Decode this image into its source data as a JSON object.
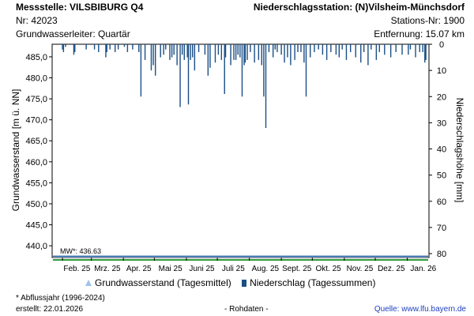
{
  "header": {
    "station_label": "Messstelle: VILSBIBURG Q4",
    "number_label": "Nr: 42023",
    "aquifer_label": "Grundwasserleiter: Quartär",
    "precip_station_label": "Niederschlagsstation: (N)Vilsheim-Münchsdorf",
    "precip_number_label": "Stations-Nr: 1900",
    "distance_label": "Entfernung: 15.07 km"
  },
  "legend": {
    "groundwater": "Grundwasserstand (Tagesmittel)",
    "precipitation": "Niederschlag (Tagessummen)"
  },
  "footer": {
    "note": "* Abflussjahr (1996-2024)",
    "created": "erstellt:  22.01.2026",
    "raw": "- Rohdaten -",
    "source_prefix": "Quelle: ",
    "source_link": "www.lfu.bayern.de"
  },
  "colors": {
    "precipitation_bar": "#1a4f86",
    "mw_line": "#2e9a3a",
    "groundwater_fill": "#9fc3ea",
    "axis": "#000000"
  },
  "chart_data": {
    "type": "bar",
    "left_axis": {
      "label": "Grundwasserstand [m ü. NN]",
      "ticks": [
        "440,0",
        "445,0",
        "450,0",
        "455,0",
        "460,0",
        "465,0",
        "470,0",
        "475,0",
        "480,0",
        "485,0"
      ],
      "tick_values": [
        440,
        445,
        450,
        455,
        460,
        465,
        470,
        475,
        480,
        485
      ],
      "range": [
        437.2,
        488.0
      ]
    },
    "right_axis": {
      "label": "Niederschlagshöhe [mm]",
      "ticks": [
        "0",
        "10",
        "20",
        "30",
        "40",
        "50",
        "60",
        "70",
        "80"
      ],
      "tick_values": [
        0,
        10,
        20,
        30,
        40,
        50,
        60,
        70,
        80
      ],
      "range": [
        0,
        81.5
      ],
      "inverted": true
    },
    "x_axis": {
      "ticks": [
        "Feb. 25",
        "Mrz. 25",
        "Apr. 25",
        "Mai 25",
        "Juni 25",
        "Juli 25",
        "Aug. 25",
        "Sept. 25",
        "Okt. 25",
        "Nov. 25",
        "Dez. 25",
        "Jan. 26"
      ],
      "range": [
        "2025-01-22",
        "2026-01-22"
      ]
    },
    "mw_label": "MW*: 436.63",
    "mw_value": 436.63,
    "groundwater": {
      "name": "Grundwasserstand (Tagesmittel)",
      "level": 437.5
    },
    "precipitation": {
      "name": "Niederschlag (Tagessummen)",
      "points": [
        [
          "2025-02-01",
          2
        ],
        [
          "2025-02-02",
          3
        ],
        [
          "2025-02-04",
          1
        ],
        [
          "2025-02-12",
          4
        ],
        [
          "2025-02-13",
          3
        ],
        [
          "2025-02-24",
          2
        ],
        [
          "2025-03-04",
          2
        ],
        [
          "2025-03-08",
          3
        ],
        [
          "2025-03-15",
          5
        ],
        [
          "2025-03-16",
          3
        ],
        [
          "2025-03-19",
          2
        ],
        [
          "2025-03-24",
          3
        ],
        [
          "2025-03-27",
          2
        ],
        [
          "2025-04-02",
          1
        ],
        [
          "2025-04-05",
          3
        ],
        [
          "2025-04-10",
          2
        ],
        [
          "2025-04-16",
          3
        ],
        [
          "2025-04-18",
          20
        ],
        [
          "2025-04-22",
          6
        ],
        [
          "2025-04-28",
          10
        ],
        [
          "2025-04-30",
          8
        ],
        [
          "2025-05-02",
          12
        ],
        [
          "2025-05-07",
          5
        ],
        [
          "2025-05-10",
          4
        ],
        [
          "2025-05-12",
          2
        ],
        [
          "2025-05-16",
          6
        ],
        [
          "2025-05-18",
          5
        ],
        [
          "2025-05-20",
          4
        ],
        [
          "2025-05-23",
          8
        ],
        [
          "2025-05-26",
          24
        ],
        [
          "2025-05-28",
          4
        ],
        [
          "2025-05-30",
          6
        ],
        [
          "2025-06-02",
          5
        ],
        [
          "2025-06-03",
          23
        ],
        [
          "2025-06-05",
          6
        ],
        [
          "2025-06-07",
          5
        ],
        [
          "2025-06-09",
          10
        ],
        [
          "2025-06-13",
          3
        ],
        [
          "2025-06-19",
          4
        ],
        [
          "2025-06-22",
          12
        ],
        [
          "2025-06-24",
          9
        ],
        [
          "2025-06-29",
          7
        ],
        [
          "2025-07-02",
          4
        ],
        [
          "2025-07-05",
          6
        ],
        [
          "2025-07-08",
          19
        ],
        [
          "2025-07-09",
          5
        ],
        [
          "2025-07-14",
          8
        ],
        [
          "2025-07-17",
          6
        ],
        [
          "2025-07-19",
          6
        ],
        [
          "2025-07-21",
          4
        ],
        [
          "2025-07-23",
          5
        ],
        [
          "2025-07-25",
          20
        ],
        [
          "2025-07-27",
          8
        ],
        [
          "2025-07-28",
          7
        ],
        [
          "2025-07-30",
          6
        ],
        [
          "2025-08-02",
          3
        ],
        [
          "2025-08-06",
          7
        ],
        [
          "2025-08-10",
          6
        ],
        [
          "2025-08-13",
          8
        ],
        [
          "2025-08-15",
          20
        ],
        [
          "2025-08-17",
          32
        ],
        [
          "2025-08-20",
          3
        ],
        [
          "2025-08-24",
          5
        ],
        [
          "2025-08-26",
          2
        ],
        [
          "2025-08-28",
          3
        ],
        [
          "2025-09-01",
          4
        ],
        [
          "2025-09-04",
          7
        ],
        [
          "2025-09-07",
          5
        ],
        [
          "2025-09-10",
          8
        ],
        [
          "2025-09-14",
          6
        ],
        [
          "2025-09-17",
          3
        ],
        [
          "2025-09-20",
          3
        ],
        [
          "2025-09-23",
          7
        ],
        [
          "2025-09-25",
          20
        ],
        [
          "2025-09-29",
          5
        ],
        [
          "2025-10-03",
          3
        ],
        [
          "2025-10-07",
          2
        ],
        [
          "2025-10-11",
          4
        ],
        [
          "2025-10-15",
          6
        ],
        [
          "2025-10-19",
          3
        ],
        [
          "2025-10-24",
          4
        ],
        [
          "2025-10-27",
          5
        ],
        [
          "2025-10-30",
          2
        ],
        [
          "2025-11-03",
          6
        ],
        [
          "2025-11-07",
          3
        ],
        [
          "2025-11-12",
          5
        ],
        [
          "2025-11-17",
          7
        ],
        [
          "2025-11-20",
          3
        ],
        [
          "2025-11-24",
          8
        ],
        [
          "2025-11-27",
          2
        ],
        [
          "2025-12-02",
          6
        ],
        [
          "2025-12-05",
          3
        ],
        [
          "2025-12-10",
          4
        ],
        [
          "2025-12-16",
          5
        ],
        [
          "2025-12-21",
          3
        ],
        [
          "2025-12-27",
          4
        ],
        [
          "2026-01-02",
          4
        ],
        [
          "2026-01-04",
          2
        ],
        [
          "2026-01-09",
          5
        ],
        [
          "2026-01-13",
          3
        ],
        [
          "2026-01-16",
          3
        ],
        [
          "2026-01-18",
          7
        ],
        [
          "2026-01-19",
          6
        ]
      ]
    }
  }
}
